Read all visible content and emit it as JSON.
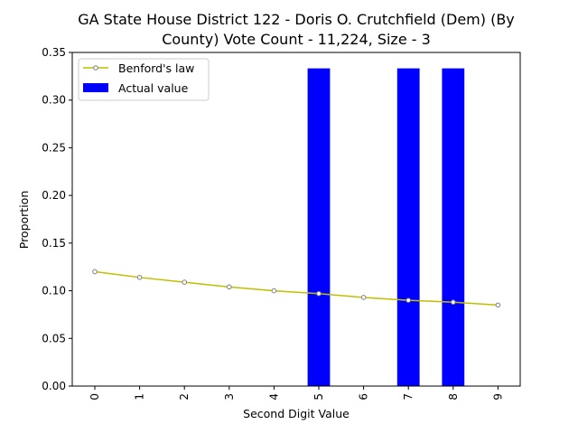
{
  "chart_data": {
    "type": "bar",
    "title_line1": "GA State House District 122 - Doris O. Crutchfield (Dem) (By",
    "title_line2": "County) Vote Count - 11,224, Size - 3",
    "xlabel": "Second Digit Value",
    "ylabel": "Proportion",
    "categories": [
      "0",
      "1",
      "2",
      "3",
      "4",
      "5",
      "6",
      "7",
      "8",
      "9"
    ],
    "ylim": [
      0,
      0.35
    ],
    "yticks": [
      "0.00",
      "0.05",
      "0.10",
      "0.15",
      "0.20",
      "0.25",
      "0.30",
      "0.35"
    ],
    "grid": false,
    "legend_position": "top-left",
    "series": [
      {
        "name": "Benford's law",
        "kind": "line",
        "color": "#bfbf00",
        "values": [
          0.12,
          0.114,
          0.109,
          0.104,
          0.1,
          0.097,
          0.093,
          0.09,
          0.088,
          0.085
        ]
      },
      {
        "name": "Actual value",
        "kind": "bar",
        "color": "#0000ff",
        "values": [
          0,
          0,
          0,
          0,
          0,
          0.3333,
          0,
          0.3333,
          0.3333,
          0
        ]
      }
    ]
  }
}
